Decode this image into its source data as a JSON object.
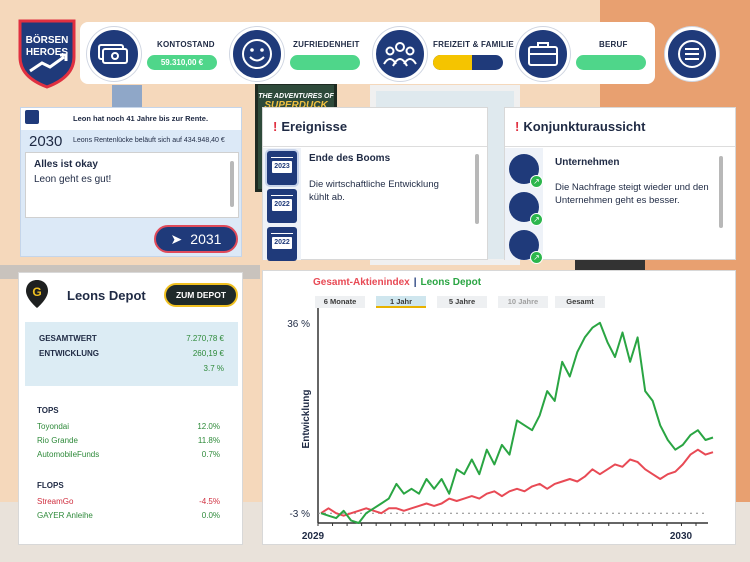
{
  "logo": {
    "line1": "BÖRSEN",
    "line2": "HEROES"
  },
  "stats": {
    "kontostand": {
      "label": "KONTOSTAND",
      "value": "59.310,00 €"
    },
    "zufriedenheit": {
      "label": "ZUFRIEDENHEIT",
      "level": 1.0
    },
    "freizeit": {
      "label": "FREIZEIT & FAMILIE",
      "level": 0.55
    },
    "beruf": {
      "label": "BERUF",
      "level": 1.0
    }
  },
  "poster": {
    "line1": "THE ADVENTURES OF",
    "line2": "SUPERDUCK"
  },
  "pension": {
    "header": "Leon hat noch 41 Jahre bis zur Rente.",
    "year": "2030",
    "gap": "Leons Rentenlücke beläuft sich auf 434.948,40 €",
    "msg_title": "Alles ist okay",
    "msg_body": "Leon geht es gut!",
    "next_year": "2031"
  },
  "events": {
    "title": "Ereignisse",
    "icons": [
      "2023",
      "2022",
      "2022"
    ],
    "headline": "Ende des Booms",
    "body_line1": "Die wirtschaftliche Entwicklung",
    "body_line2": "kühlt ab."
  },
  "konjunktur": {
    "title": "Konjunkturaussicht",
    "headline": "Unternehmen",
    "body_line1": "Die Nachfrage steigt wieder und den",
    "body_line2": "Unternehmen geht es besser."
  },
  "depot": {
    "title": "Leons Depot",
    "button": "ZUM DEPOT",
    "gesamtwert_label": "GESAMTWERT",
    "gesamtwert": "7.270,78 €",
    "entwicklung_label": "ENTWICKLUNG",
    "entwicklung": "260,19 €",
    "entwicklung_pct": "3.7 %",
    "tops_label": "TOPS",
    "tops": [
      {
        "name": "Toyondai",
        "value": "12.0%"
      },
      {
        "name": "Rio Grande",
        "value": "11.8%"
      },
      {
        "name": "AutomobileFunds",
        "value": "0.7%"
      }
    ],
    "flops_label": "FLOPS",
    "flops": [
      {
        "name": "StreamGo",
        "value": "-4.5%"
      },
      {
        "name": "GAYER Anleihe",
        "value": "0.0%"
      }
    ]
  },
  "chart_tabs": [
    "6 Monate",
    "1 Jahr",
    "5 Jahre",
    "10 Jahre",
    "Gesamt"
  ],
  "colors": {
    "navy": "#1f3a7a",
    "green": "#2aa543",
    "red": "#e84a55",
    "accent": "#f0c020"
  },
  "chart_data": {
    "type": "line",
    "title_part1": "Gesamt-Aktienindex",
    "title_sep": "|",
    "title_part2": "Leons Depot",
    "ylabel": "Entwicklung",
    "y_ticks": [
      "36 %",
      "-3 %"
    ],
    "x_ticks": [
      "2029",
      "2030"
    ],
    "ylim": [
      -5,
      38
    ],
    "series": [
      {
        "name": "Gesamt-Aktienindex",
        "color": "#e84a55",
        "values": [
          -3,
          -2,
          -3,
          -3.5,
          -3,
          -2.5,
          -2,
          -2.5,
          -3,
          -2,
          -2,
          -2.5,
          -2,
          -1.5,
          -1,
          -1.5,
          -1,
          0,
          -0.5,
          0,
          0.5,
          0,
          1,
          1.5,
          0.5,
          1.5,
          2,
          1.5,
          2.5,
          3,
          2,
          3,
          3.5,
          4,
          3.5,
          4.5,
          6,
          5,
          6,
          7,
          6.5,
          8,
          7.5,
          6,
          5,
          4,
          5,
          5.5,
          7,
          9,
          10,
          9,
          9.5
        ]
      },
      {
        "name": "Leons Depot",
        "color": "#2aa543",
        "values": [
          -3,
          -3.5,
          -4,
          -2.5,
          -4.5,
          -5,
          -3,
          -2,
          -1,
          0,
          3,
          1,
          2,
          1,
          4,
          2,
          4,
          1,
          6,
          5,
          8,
          5,
          10,
          7,
          11,
          9,
          16,
          15,
          14,
          17,
          22,
          20,
          28,
          25,
          30,
          33,
          35,
          36,
          32,
          29,
          34,
          28,
          33,
          22,
          20,
          15,
          12,
          10,
          11,
          13,
          14,
          12,
          12.5
        ]
      }
    ]
  }
}
